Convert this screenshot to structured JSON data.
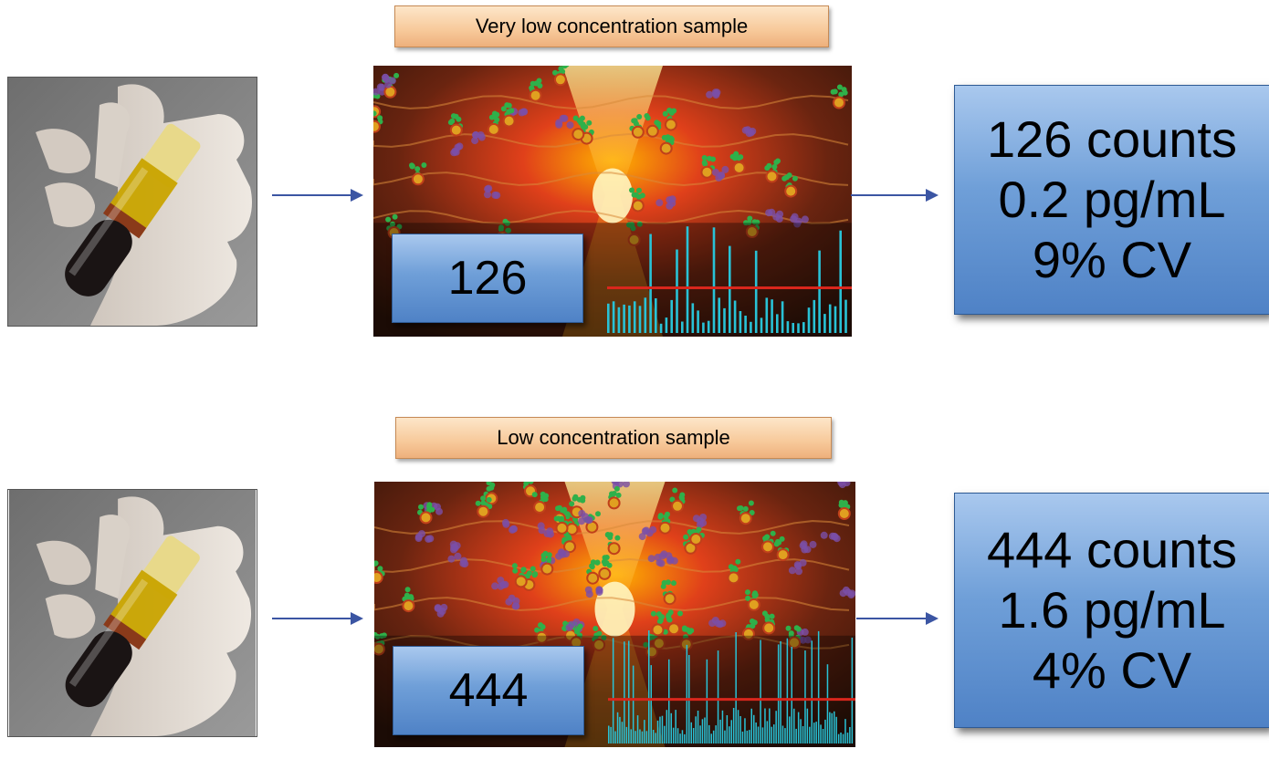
{
  "rows": [
    {
      "label": "Very low concentration sample",
      "count": "126",
      "result": {
        "counts": "126 counts",
        "concentration": "0.2 pg/mL",
        "cv": "9% CV"
      },
      "density": "low"
    },
    {
      "label": "Low concentration sample",
      "count": "444",
      "result": {
        "counts": "444 counts",
        "concentration": "1.6 pg/mL",
        "cv": "4% CV"
      },
      "density": "higher"
    }
  ],
  "icons": {
    "tube_photo": "blood-tube-in-hand-photo",
    "arrow": "right-arrow-icon"
  },
  "colors": {
    "box_blue": "#6f9fd8",
    "label_orange": "#f7c99a",
    "arrow_blue": "#3b55a3",
    "threshold_red": "#d9261c",
    "peak_cyan": "#29c2d6"
  }
}
